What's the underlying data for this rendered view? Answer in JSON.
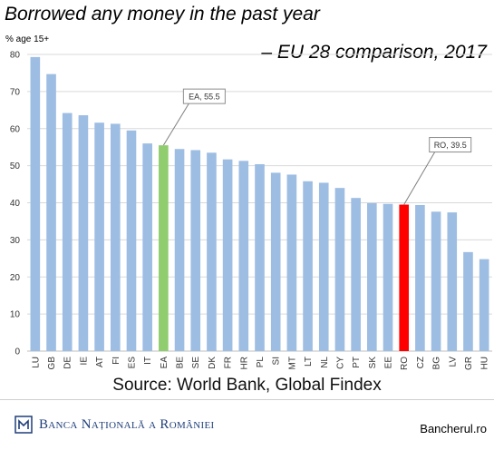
{
  "header": {
    "title": "Borrowed any money in the past year",
    "subtitle": "– EU 28 comparison, 2017"
  },
  "footer": {
    "source": "Source: World Bank, Global Findex",
    "bank_name": "Banca Națională a României",
    "site": "Bancherul.ro"
  },
  "chart_data": {
    "type": "bar",
    "ylabel": "% age 15+",
    "ylim": [
      0,
      80
    ],
    "yticks": [
      0,
      10,
      20,
      30,
      40,
      50,
      60,
      70,
      80
    ],
    "grid": true,
    "categories": [
      "LU",
      "GB",
      "DE",
      "IE",
      "AT",
      "FI",
      "ES",
      "IT",
      "EA",
      "BE",
      "SE",
      "DK",
      "FR",
      "HR",
      "PL",
      "SI",
      "MT",
      "LT",
      "NL",
      "CY",
      "PT",
      "SK",
      "EE",
      "RO",
      "CZ",
      "BG",
      "LV",
      "GR",
      "HU"
    ],
    "values": [
      79.3,
      74.7,
      64.2,
      63.6,
      61.6,
      61.3,
      59.5,
      56.0,
      55.5,
      54.5,
      54.2,
      53.5,
      51.7,
      51.3,
      50.4,
      48.1,
      47.6,
      45.8,
      45.4,
      44.0,
      41.3,
      39.9,
      39.7,
      39.5,
      39.4,
      37.6,
      37.4,
      26.7,
      24.8
    ],
    "colors": {
      "default": "#9dbde3",
      "highlight_EA": "#8fcd6e",
      "highlight_RO": "#ff0000"
    },
    "annotations": [
      {
        "category": "EA",
        "text": "EA, 55.5"
      },
      {
        "category": "RO",
        "text": "RO, 39.5"
      }
    ]
  }
}
